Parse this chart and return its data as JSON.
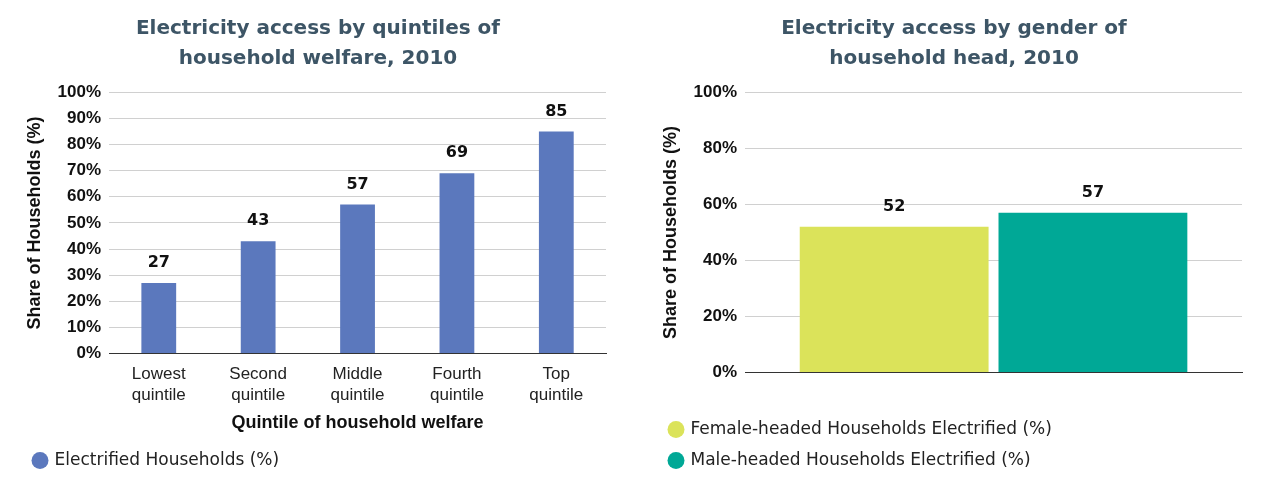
{
  "chart_data": [
    {
      "type": "bar",
      "title": "Electricity access by quintiles of household welfare, 2010",
      "xlabel": "Quintile of household welfare",
      "ylabel": "Share of Households (%)",
      "categories": [
        "Lowest quintile",
        "Second quintile",
        "Middle quintile",
        "Fourth quintile",
        "Top quintile"
      ],
      "series": [
        {
          "name": "Electrified Households (%)",
          "color": "#5b78bd",
          "values": [
            27,
            43,
            57,
            69,
            85
          ]
        }
      ],
      "ylim": [
        0,
        100
      ],
      "yticks": [
        {
          "value": 0,
          "label": "0%"
        },
        {
          "value": 10,
          "label": "10%"
        },
        {
          "value": 20,
          "label": "20%"
        },
        {
          "value": 30,
          "label": "30%"
        },
        {
          "value": 40,
          "label": "40%"
        },
        {
          "value": 50,
          "label": "50%"
        },
        {
          "value": 60,
          "label": "60%"
        },
        {
          "value": 70,
          "label": "70%"
        },
        {
          "value": 80,
          "label": "80%"
        },
        {
          "value": 90,
          "label": "90%"
        },
        {
          "value": 100,
          "label": "100%"
        }
      ],
      "grid": "y",
      "legend": "bottom",
      "data_labels": true
    },
    {
      "type": "bar",
      "title": "Electricity access by gender of household head, 2010",
      "ylabel": "Share of Households (%)",
      "categories": [
        null
      ],
      "series": [
        {
          "name": "Female-headed Households Electrified (%)",
          "color": "#dbe35a",
          "values": [
            52
          ]
        },
        {
          "name": "Male-headed Households Electrified (%)",
          "color": "#00a896",
          "values": [
            57
          ]
        }
      ],
      "ylim": [
        0,
        100
      ],
      "yticks": [
        {
          "value": 0,
          "label": "0%"
        },
        {
          "value": 20,
          "label": "20%"
        },
        {
          "value": 40,
          "label": "40%"
        },
        {
          "value": 60,
          "label": "60%"
        },
        {
          "value": 80,
          "label": "80%"
        },
        {
          "value": 100,
          "label": "100%"
        }
      ],
      "grid": "y",
      "legend": "bottom",
      "data_labels": true
    }
  ]
}
